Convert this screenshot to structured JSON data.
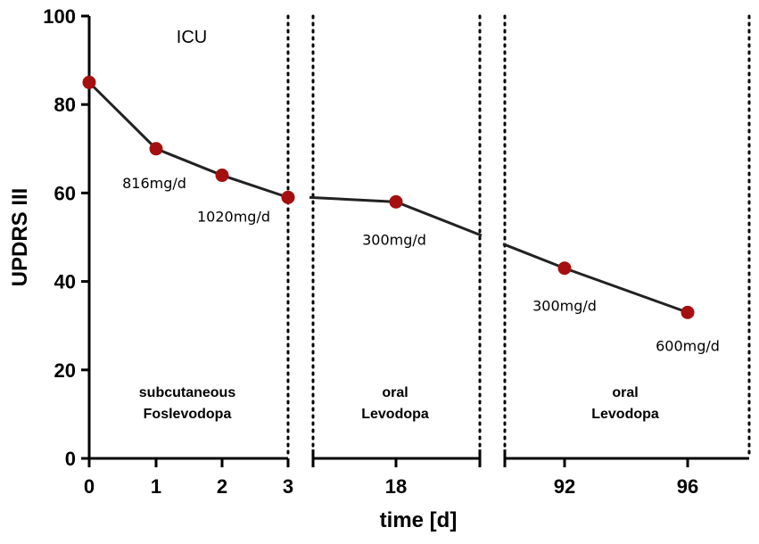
{
  "chart_data": {
    "type": "line",
    "ylabel": "UPDRS III",
    "xlabel": "time [d]",
    "ylim": [
      0,
      100
    ],
    "yticks": [
      "0",
      "20",
      "40",
      "60",
      "80",
      "100"
    ],
    "segments": [
      {
        "name": "subcutaneous Foslevodopa",
        "line1": "subcutaneous",
        "line2": "Foslevodopa",
        "xticks": [
          "0",
          "1",
          "2",
          "3"
        ],
        "points": [
          {
            "day": 0,
            "value": 85,
            "dose": ""
          },
          {
            "day": 1,
            "value": 70,
            "dose": "816mg/d"
          },
          {
            "day": 2,
            "value": 64,
            "dose": "1020mg/d"
          },
          {
            "day": 3,
            "value": 59,
            "dose": ""
          }
        ]
      },
      {
        "name": "oral Levodopa",
        "line1": "oral",
        "line2": "Levodopa",
        "xticks": [
          "18"
        ],
        "points": [
          {
            "day": 18,
            "value": 58,
            "dose": "300mg/d"
          }
        ]
      },
      {
        "name": "oral Levodopa",
        "line1": "oral",
        "line2": "Levodopa",
        "xticks": [
          "92",
          "96"
        ],
        "points": [
          {
            "day": 92,
            "value": 43,
            "dose": "300mg/d"
          },
          {
            "day": 96,
            "value": 33,
            "dose": "600mg/d"
          }
        ]
      }
    ],
    "annotations": [
      "ICU"
    ],
    "colors": {
      "marker": "#a50f0f",
      "line": "#222222",
      "axis": "#000000"
    }
  }
}
